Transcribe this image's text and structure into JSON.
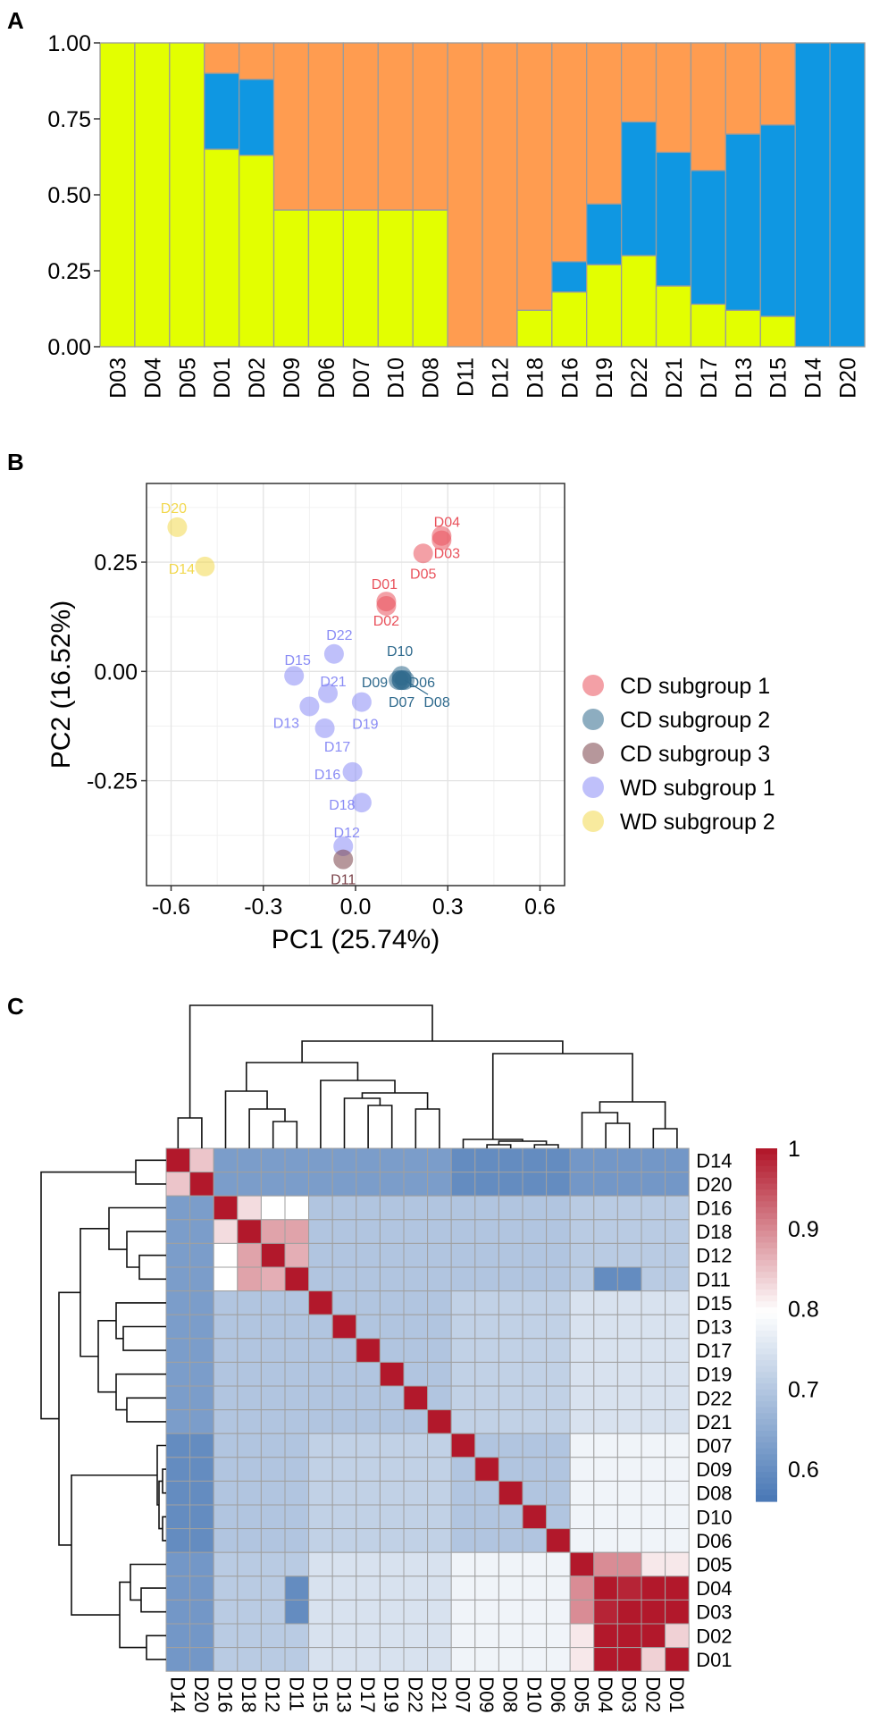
{
  "colors": {
    "yellow": "#e3ff00",
    "orange": "#ff9c50",
    "blue": "#0f97e2",
    "cd1": "#e9525c",
    "cd2": "#2f6a8d",
    "cd3": "#7a4148",
    "wd1": "#8a8cf5",
    "wd2": "#f2d84e"
  },
  "chart_data": [
    {
      "panel": "A",
      "type": "bar",
      "stacked": true,
      "categories": [
        "D03",
        "D04",
        "D05",
        "D01",
        "D02",
        "D09",
        "D06",
        "D07",
        "D10",
        "D08",
        "D11",
        "D12",
        "D18",
        "D16",
        "D19",
        "D22",
        "D21",
        "D17",
        "D13",
        "D15",
        "D14",
        "D20"
      ],
      "series": [
        {
          "name": "yellow",
          "color": "#e3ff00",
          "values": [
            1,
            1,
            1,
            0.65,
            0.63,
            0.45,
            0.45,
            0.45,
            0.45,
            0.45,
            0,
            0,
            0.12,
            0.18,
            0.27,
            0.3,
            0.2,
            0.14,
            0.12,
            0.1,
            0,
            0
          ]
        },
        {
          "name": "blue",
          "color": "#0f97e2",
          "values": [
            0,
            0,
            0,
            0.25,
            0.25,
            0,
            0,
            0,
            0,
            0,
            0,
            0,
            0,
            0.1,
            0.2,
            0.44,
            0.44,
            0.44,
            0.58,
            0.63,
            1,
            1
          ]
        },
        {
          "name": "orange",
          "color": "#ff9c50",
          "values": [
            0,
            0,
            0,
            0.1,
            0.12,
            0.55,
            0.55,
            0.55,
            0.55,
            0.55,
            1,
            1,
            0.88,
            0.72,
            0.53,
            0.26,
            0.36,
            0.42,
            0.3,
            0.27,
            0,
            0
          ]
        }
      ],
      "ylim": [
        0,
        1
      ],
      "yticks": [
        "0.00",
        "0.25",
        "0.50",
        "0.75",
        "1.00"
      ],
      "xlabel": "",
      "ylabel": ""
    },
    {
      "panel": "B",
      "type": "scatter",
      "xlabel": "PC1 (25.74%)",
      "ylabel": "PC2 (16.52%)",
      "xlim": [
        -0.68,
        0.68
      ],
      "ylim": [
        -0.49,
        0.43
      ],
      "xticks": [
        "-0.6",
        "-0.3",
        "0.0",
        "0.3",
        "0.6"
      ],
      "yticks": [
        "-0.25",
        "0.00",
        "0.25"
      ],
      "grid": true,
      "legend": "right",
      "groups": [
        {
          "name": "CD subgroup 1",
          "color": "#e9525c"
        },
        {
          "name": "CD subgroup 2",
          "color": "#2f6a8d"
        },
        {
          "name": "CD subgroup 3",
          "color": "#7a4148"
        },
        {
          "name": "WD subgroup 1",
          "color": "#8a8cf5"
        },
        {
          "name": "WD subgroup 2",
          "color": "#f2d84e"
        }
      ],
      "points": [
        {
          "label": "D20",
          "x": -0.58,
          "y": 0.33,
          "group": 4
        },
        {
          "label": "D14",
          "x": -0.49,
          "y": 0.24,
          "group": 4
        },
        {
          "label": "D04",
          "x": 0.28,
          "y": 0.31,
          "group": 0
        },
        {
          "label": "D03",
          "x": 0.28,
          "y": 0.3,
          "group": 0
        },
        {
          "label": "D05",
          "x": 0.22,
          "y": 0.27,
          "group": 0
        },
        {
          "label": "D01",
          "x": 0.1,
          "y": 0.16,
          "group": 0
        },
        {
          "label": "D02",
          "x": 0.1,
          "y": 0.15,
          "group": 0
        },
        {
          "label": "D10",
          "x": 0.15,
          "y": -0.01,
          "group": 1
        },
        {
          "label": "D09",
          "x": 0.14,
          "y": -0.02,
          "group": 1
        },
        {
          "label": "D06",
          "x": 0.15,
          "y": -0.02,
          "group": 1
        },
        {
          "label": "D07",
          "x": 0.15,
          "y": -0.02,
          "group": 1
        },
        {
          "label": "D08",
          "x": 0.16,
          "y": -0.02,
          "group": 1
        },
        {
          "label": "D22",
          "x": -0.07,
          "y": 0.04,
          "group": 3
        },
        {
          "label": "D15",
          "x": -0.2,
          "y": -0.01,
          "group": 3
        },
        {
          "label": "D21",
          "x": -0.09,
          "y": -0.05,
          "group": 3
        },
        {
          "label": "D13",
          "x": -0.15,
          "y": -0.08,
          "group": 3
        },
        {
          "label": "D19",
          "x": 0.02,
          "y": -0.07,
          "group": 3
        },
        {
          "label": "D17",
          "x": -0.1,
          "y": -0.13,
          "group": 3
        },
        {
          "label": "D16",
          "x": -0.01,
          "y": -0.23,
          "group": 3
        },
        {
          "label": "D18",
          "x": 0.02,
          "y": -0.3,
          "group": 3
        },
        {
          "label": "D12",
          "x": -0.04,
          "y": -0.4,
          "group": 3
        },
        {
          "label": "D11",
          "x": -0.04,
          "y": -0.43,
          "group": 2
        }
      ]
    },
    {
      "panel": "C",
      "type": "heatmap",
      "rows": [
        "D14",
        "D20",
        "D16",
        "D18",
        "D12",
        "D11",
        "D15",
        "D13",
        "D17",
        "D19",
        "D22",
        "D21",
        "D07",
        "D09",
        "D08",
        "D10",
        "D06",
        "D05",
        "D04",
        "D03",
        "D02",
        "D01"
      ],
      "cols": [
        "D14",
        "D20",
        "D16",
        "D18",
        "D12",
        "D11",
        "D15",
        "D13",
        "D17",
        "D19",
        "D22",
        "D21",
        "D07",
        "D09",
        "D08",
        "D10",
        "D06",
        "D05",
        "D04",
        "D03",
        "D02",
        "D01"
      ],
      "groups": [
        0,
        0,
        1,
        1,
        1,
        1,
        2,
        2,
        2,
        2,
        2,
        2,
        3,
        3,
        3,
        3,
        3,
        4,
        4,
        4,
        4,
        4
      ],
      "block_values": [
        [
          0.9,
          0.63,
          0.63,
          0.6,
          0.62,
          0.62
        ],
        [
          0.63,
          0.8,
          0.7,
          0.7,
          0.71,
          0.67
        ],
        [
          0.63,
          0.7,
          0.7,
          0.72,
          0.75,
          0.7
        ],
        [
          0.6,
          0.7,
          0.72,
          0.7,
          0.78,
          0.72
        ],
        [
          0.62,
          0.71,
          0.75,
          0.78,
          1.0,
          0.8
        ],
        [
          0.62,
          0.67,
          0.7,
          0.72,
          0.8,
          0.85
        ]
      ],
      "overrides": [
        {
          "r": 0,
          "c": 1,
          "v": 0.85
        },
        {
          "r": 1,
          "c": 0,
          "v": 0.85
        },
        {
          "r": 3,
          "c": 4,
          "v": 0.88
        },
        {
          "r": 4,
          "c": 3,
          "v": 0.88
        },
        {
          "r": 3,
          "c": 5,
          "v": 0.88
        },
        {
          "r": 5,
          "c": 3,
          "v": 0.88
        },
        {
          "r": 4,
          "c": 5,
          "v": 0.87
        },
        {
          "r": 5,
          "c": 4,
          "v": 0.87
        },
        {
          "r": 2,
          "c": 3,
          "v": 0.83
        },
        {
          "r": 3,
          "c": 2,
          "v": 0.83
        },
        {
          "r": 5,
          "c": 18,
          "v": 0.6
        },
        {
          "r": 18,
          "c": 5,
          "v": 0.6
        },
        {
          "r": 5,
          "c": 19,
          "v": 0.6
        },
        {
          "r": 19,
          "c": 5,
          "v": 0.6
        },
        {
          "r": 18,
          "c": 19,
          "v": 0.99
        },
        {
          "r": 19,
          "c": 18,
          "v": 0.99
        },
        {
          "r": 17,
          "c": 18,
          "v": 0.9
        },
        {
          "r": 18,
          "c": 17,
          "v": 0.9
        },
        {
          "r": 17,
          "c": 19,
          "v": 0.9
        },
        {
          "r": 19,
          "c": 17,
          "v": 0.9
        },
        {
          "r": 20,
          "c": 21,
          "v": 0.84
        },
        {
          "r": 21,
          "c": 20,
          "v": 0.84
        },
        {
          "r": 17,
          "c": 20,
          "v": 0.82
        },
        {
          "r": 20,
          "c": 17,
          "v": 0.82
        },
        {
          "r": 17,
          "c": 21,
          "v": 0.82
        },
        {
          "r": 21,
          "c": 17,
          "v": 0.82
        }
      ],
      "colorbar": {
        "min": 0.56,
        "max": 1.0,
        "ticks": [
          "0.6",
          "0.7",
          "0.8",
          "0.9",
          "1"
        ]
      }
    }
  ],
  "panels": {
    "a": "A",
    "b": "B",
    "c": "C"
  }
}
